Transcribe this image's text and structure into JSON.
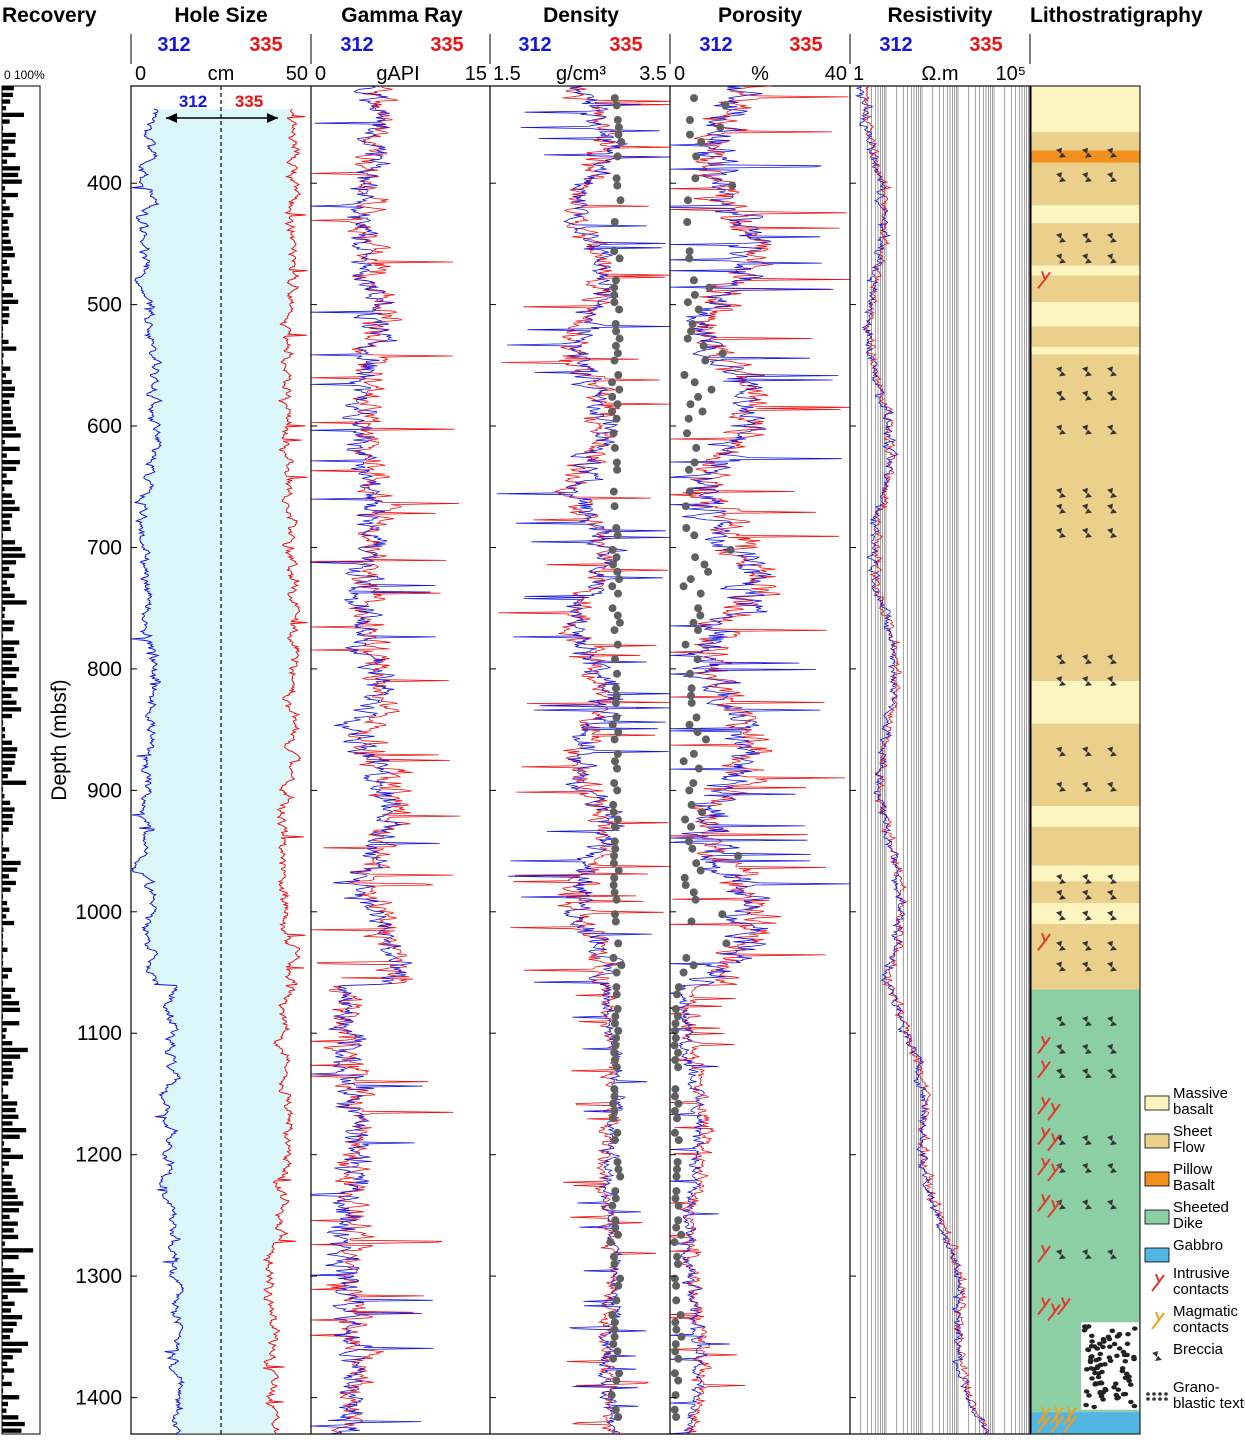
{
  "figure": {
    "ylabel": "Depth (mbsf)",
    "depth_ticks": [
      400,
      500,
      600,
      700,
      800,
      900,
      1000,
      1100,
      1200,
      1300,
      1400
    ],
    "ylim": [
      320,
      1430
    ],
    "colors": {
      "hole312": "#1515e0",
      "hole335": "#ee1111",
      "core": "#606060",
      "caliper_fill": "#dcf7fa"
    }
  },
  "recovery": {
    "title": "Recovery",
    "scale_label": "0 100%"
  },
  "tracks": [
    {
      "key": "hole_size",
      "title": "Hole Size",
      "left": "312",
      "right": "335",
      "min": "0",
      "unit": "cm",
      "max": "50"
    },
    {
      "key": "gamma_ray",
      "title": "Gamma Ray",
      "left": "312",
      "right": "335",
      "min": "0",
      "unit": "gAPI",
      "max": "15"
    },
    {
      "key": "density",
      "title": "Density",
      "left": "312",
      "right": "335",
      "min": "1.5",
      "unit": "g/cm³",
      "max": "3.5"
    },
    {
      "key": "porosity",
      "title": "Porosity",
      "left": "312",
      "right": "335",
      "min": "0",
      "unit": "%",
      "max": "40"
    },
    {
      "key": "resistivity",
      "title": "Resistivity",
      "left": "312",
      "right": "335",
      "min": "1",
      "unit": "Ω.m",
      "max": "10⁵"
    }
  ],
  "hole_annotation": {
    "left": "312",
    "right": "335"
  },
  "lithostratigraphy": {
    "title": "Lithostratigraphy",
    "legend": [
      {
        "label": "Massive basalt",
        "color": "#fdf5c0",
        "type": "box"
      },
      {
        "label": "Sheet Flow",
        "color": "#ead08a",
        "type": "box"
      },
      {
        "label": "Pillow Basalt",
        "color": "#f1901f",
        "type": "box"
      },
      {
        "label": "Sheeted Dike",
        "color": "#8dcfa4",
        "type": "box"
      },
      {
        "label": "Gabbro",
        "color": "#52b6e2",
        "type": "box"
      },
      {
        "label": "Intrusive contacts",
        "color": "#e03a2e",
        "type": "contact"
      },
      {
        "label": "Magmatic contacts",
        "color": "#f0a020",
        "type": "contact"
      },
      {
        "label": "Breccia",
        "color": "#444444",
        "type": "breccia"
      },
      {
        "label": "Grano- blastic texture",
        "color": "#444444",
        "type": "dots"
      }
    ]
  },
  "chart_data": {
    "type": "line",
    "depth_axis": {
      "label": "Depth (mbsf)",
      "range": [
        320,
        1430
      ],
      "inverted": true
    },
    "hole_size": {
      "x": [
        0,
        50
      ],
      "unit": "cm",
      "hole312_mean": 6,
      "hole335_mean": 43
    },
    "gamma_ray": {
      "x": [
        0,
        15
      ],
      "unit": "gAPI",
      "mean_shallow": 5,
      "mean_deep": 3
    },
    "density": {
      "x": [
        1.5,
        3.5
      ],
      "unit": "g/cm3",
      "mean": 2.8
    },
    "porosity": {
      "x": [
        0,
        40
      ],
      "unit": "%",
      "mean_upper": 14,
      "mean_lower": 5
    },
    "resistivity": {
      "x": [
        1,
        100000
      ],
      "scale": "log",
      "unit": "Ω.m",
      "value_at_400": 8,
      "value_at_1400": 10000
    },
    "lithology_units": [
      {
        "top": 320,
        "bottom": 358,
        "type": "Massive basalt"
      },
      {
        "top": 358,
        "bottom": 373,
        "type": "Sheet Flow"
      },
      {
        "top": 373,
        "bottom": 383,
        "type": "Pillow Basalt"
      },
      {
        "top": 383,
        "bottom": 418,
        "type": "Sheet Flow"
      },
      {
        "top": 418,
        "bottom": 433,
        "type": "Massive basalt"
      },
      {
        "top": 433,
        "bottom": 468,
        "type": "Sheet Flow"
      },
      {
        "top": 468,
        "bottom": 476,
        "type": "Massive basalt"
      },
      {
        "top": 476,
        "bottom": 498,
        "type": "Sheet Flow"
      },
      {
        "top": 498,
        "bottom": 518,
        "type": "Massive basalt"
      },
      {
        "top": 518,
        "bottom": 535,
        "type": "Sheet Flow"
      },
      {
        "top": 535,
        "bottom": 541,
        "type": "Massive basalt"
      },
      {
        "top": 541,
        "bottom": 810,
        "type": "Sheet Flow"
      },
      {
        "top": 810,
        "bottom": 845,
        "type": "Massive basalt"
      },
      {
        "top": 845,
        "bottom": 913,
        "type": "Sheet Flow"
      },
      {
        "top": 913,
        "bottom": 930,
        "type": "Massive basalt"
      },
      {
        "top": 930,
        "bottom": 962,
        "type": "Sheet Flow"
      },
      {
        "top": 962,
        "bottom": 975,
        "type": "Massive basalt"
      },
      {
        "top": 975,
        "bottom": 993,
        "type": "Sheet Flow"
      },
      {
        "top": 993,
        "bottom": 1010,
        "type": "Massive basalt"
      },
      {
        "top": 1010,
        "bottom": 1064,
        "type": "Sheet Flow"
      },
      {
        "top": 1064,
        "bottom": 1412,
        "type": "Sheeted Dike"
      },
      {
        "top": 1412,
        "bottom": 1430,
        "type": "Gabbro"
      }
    ],
    "breccia_depths": [
      375,
      395,
      445,
      462,
      555,
      575,
      603,
      655,
      668,
      688,
      792,
      810,
      868,
      897,
      973,
      986,
      1003,
      1028,
      1045,
      1090,
      1113,
      1133,
      1188,
      1211,
      1241,
      1282
    ],
    "intrusive_contact_depths": [
      480,
      1025,
      1110,
      1130,
      1160,
      1185,
      1210,
      1240,
      1282,
      1325
    ],
    "magmatic_contact_depths": [
      1415,
      1422
    ]
  }
}
